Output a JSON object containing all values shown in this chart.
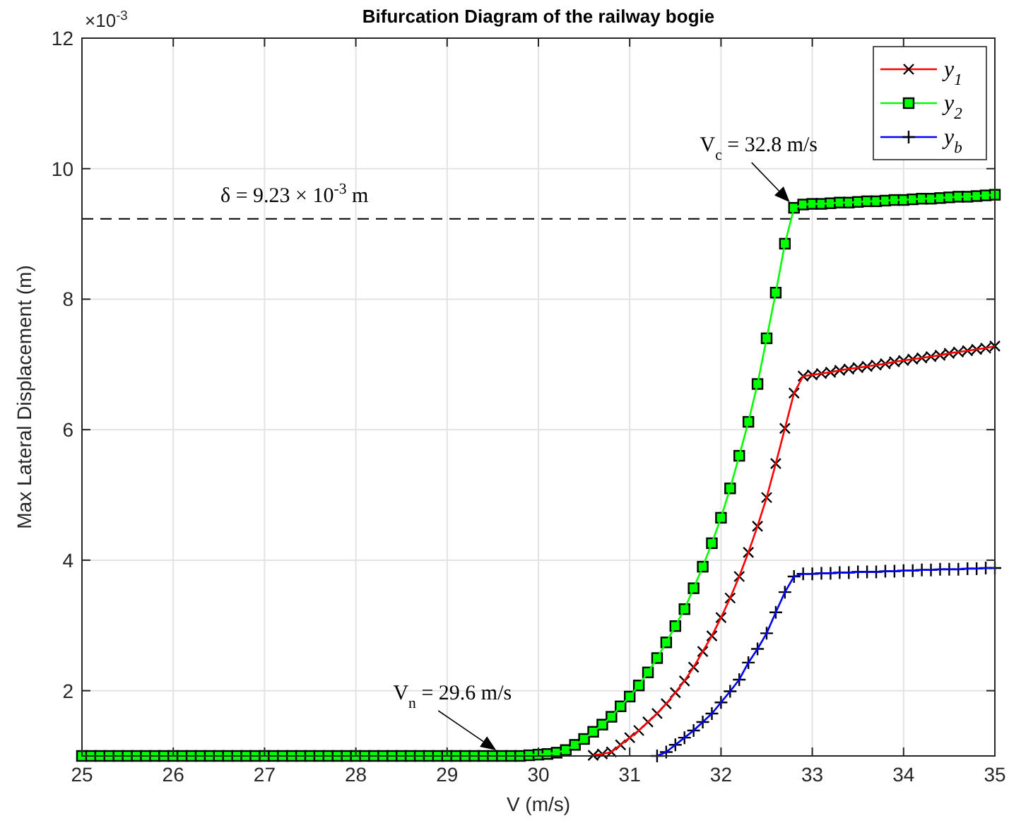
{
  "chart_data": {
    "type": "line",
    "title": "Bifurcation Diagram of the railway bogie",
    "xlabel": "V (m/s)",
    "ylabel": "Max Lateral Displacement (m)",
    "x": [
      25,
      25.1,
      25.2,
      25.3,
      25.4,
      25.5,
      25.6,
      25.7,
      25.8,
      25.9,
      26,
      26.1,
      26.2,
      26.3,
      26.4,
      26.5,
      26.6,
      26.7,
      26.8,
      26.9,
      27,
      27.1,
      27.2,
      27.3,
      27.4,
      27.5,
      27.6,
      27.7,
      27.8,
      27.9,
      28,
      28.1,
      28.2,
      28.3,
      28.4,
      28.5,
      28.6,
      28.7,
      28.8,
      28.9,
      29,
      29.1,
      29.2,
      29.3,
      29.4,
      29.5,
      29.6,
      29.7,
      29.8,
      29.9,
      30,
      30.1,
      30.2,
      30.3,
      30.4,
      30.5,
      30.6,
      30.7,
      30.8,
      30.9,
      31,
      31.1,
      31.2,
      31.3,
      31.4,
      31.5,
      31.6,
      31.7,
      31.8,
      31.9,
      32,
      32.1,
      32.2,
      32.3,
      32.4,
      32.5,
      32.6,
      32.7,
      32.8,
      32.9,
      33,
      33.1,
      33.2,
      33.3,
      33.4,
      33.5,
      33.6,
      33.7,
      33.8,
      33.9,
      34,
      34.1,
      34.2,
      34.3,
      34.4,
      34.5,
      34.6,
      34.7,
      34.8,
      34.9,
      35
    ],
    "series": [
      {
        "name": "y$_{1}$",
        "color": "#ff0000",
        "marker": "x",
        "values": [
          null,
          null,
          null,
          null,
          null,
          null,
          null,
          null,
          null,
          null,
          null,
          null,
          null,
          null,
          null,
          null,
          null,
          null,
          null,
          null,
          null,
          null,
          null,
          null,
          null,
          null,
          null,
          null,
          null,
          null,
          null,
          null,
          null,
          null,
          null,
          null,
          null,
          null,
          null,
          null,
          null,
          null,
          null,
          null,
          null,
          null,
          null,
          null,
          null,
          null,
          null,
          null,
          null,
          null,
          null,
          null,
          1.01,
          1.03,
          1.06,
          1.17,
          1.28,
          1.39,
          1.52,
          1.65,
          1.8,
          1.97,
          2.15,
          2.36,
          2.6,
          2.84,
          3.12,
          3.42,
          3.75,
          4.12,
          4.52,
          4.96,
          5.48,
          6.02,
          6.56,
          6.82,
          6.84,
          6.86,
          6.88,
          6.91,
          6.93,
          6.95,
          6.97,
          6.99,
          7.01,
          7.04,
          7.06,
          7.08,
          7.1,
          7.12,
          7.14,
          7.17,
          7.19,
          7.21,
          7.23,
          7.25,
          7.28
        ]
      },
      {
        "name": "y$_{2}$",
        "color": "#00ff00",
        "marker": "square",
        "values": [
          1,
          1,
          1,
          1,
          1,
          1,
          1,
          1,
          1,
          1,
          1,
          1,
          1,
          1,
          1,
          1,
          1,
          1,
          1,
          1,
          1,
          1,
          1,
          1,
          1,
          1,
          1,
          1,
          1,
          1,
          1,
          1,
          1,
          1,
          1,
          1,
          1,
          1,
          1,
          1,
          1,
          1,
          1,
          1,
          1,
          1,
          1,
          1,
          1,
          1.01,
          1.02,
          1.03,
          1.05,
          1.09,
          1.17,
          1.26,
          1.37,
          1.48,
          1.6,
          1.76,
          1.91,
          2.08,
          2.28,
          2.5,
          2.74,
          2.99,
          3.25,
          3.57,
          3.9,
          4.26,
          4.65,
          5.1,
          5.6,
          6.12,
          6.7,
          7.4,
          8.1,
          8.85,
          9.4,
          9.45,
          9.46,
          9.46,
          9.47,
          9.48,
          9.48,
          9.49,
          9.5,
          9.5,
          9.51,
          9.52,
          9.52,
          9.53,
          9.54,
          9.54,
          9.55,
          9.56,
          9.57,
          9.57,
          9.58,
          9.59,
          9.6
        ]
      },
      {
        "name": "y$_{b}$",
        "color": "#0000ff",
        "marker": "cross",
        "values": [
          null,
          null,
          null,
          null,
          null,
          null,
          null,
          null,
          null,
          null,
          null,
          null,
          null,
          null,
          null,
          null,
          null,
          null,
          null,
          null,
          null,
          null,
          null,
          null,
          null,
          null,
          null,
          null,
          null,
          null,
          null,
          null,
          null,
          null,
          null,
          null,
          null,
          null,
          null,
          null,
          null,
          null,
          null,
          null,
          null,
          null,
          null,
          null,
          null,
          null,
          null,
          null,
          null,
          null,
          null,
          null,
          null,
          null,
          null,
          null,
          null,
          null,
          null,
          1,
          1.06,
          1.17,
          1.28,
          1.39,
          1.52,
          1.65,
          1.82,
          1.99,
          2.17,
          2.43,
          2.64,
          2.88,
          3.2,
          3.51,
          3.75,
          3.79,
          3.79,
          3.8,
          3.8,
          3.81,
          3.81,
          3.82,
          3.82,
          3.82,
          3.83,
          3.83,
          3.84,
          3.84,
          3.85,
          3.85,
          3.86,
          3.86,
          3.86,
          3.87,
          3.87,
          3.88,
          3.88
        ]
      }
    ],
    "xlim": [
      25,
      35
    ],
    "xticks": [
      25,
      26,
      27,
      28,
      29,
      30,
      31,
      32,
      33,
      34,
      35
    ],
    "ylim": [
      1,
      12
    ],
    "yticks": [
      2,
      4,
      6,
      8,
      10,
      12
    ],
    "ref_lines": [
      {
        "axis": "y",
        "value": 9.23,
        "label": "δ = 9.23 × 10$^{-3}$ m",
        "color": "#000000",
        "line_style": "dashed"
      }
    ],
    "annotations": [
      "×10$^{-3}$",
      {
        "text": "V$_{c}$ = 32.8 m/s",
        "x": 32.8,
        "y": 9.4
      },
      {
        "text": "V$_{n}$ = 29.6 m/s",
        "x": 29.6,
        "y": 1
      }
    ],
    "grid": true,
    "legend": "top right"
  }
}
